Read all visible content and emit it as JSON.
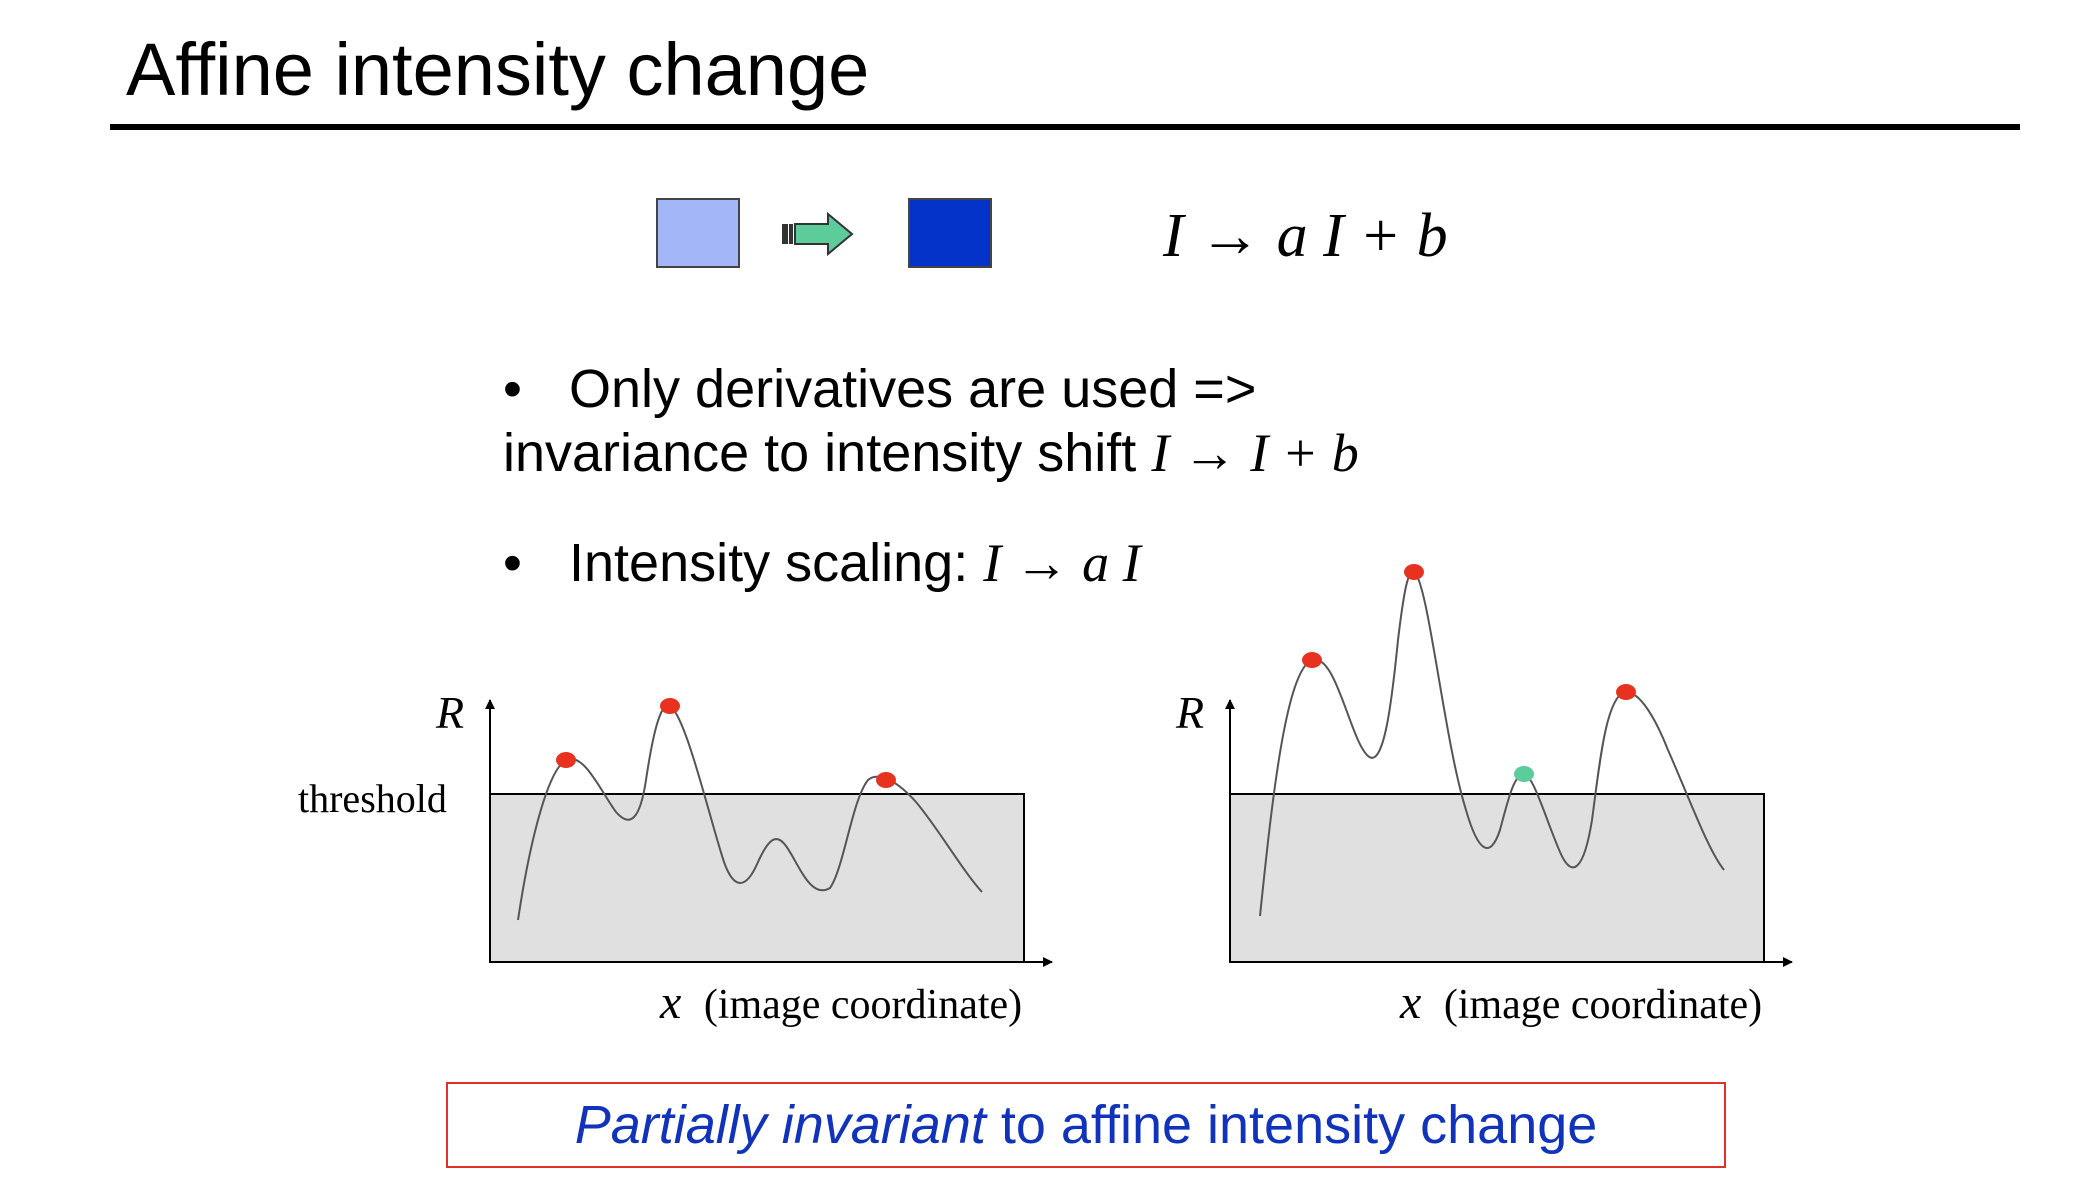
{
  "slide": {
    "title": "Affine intensity change"
  },
  "illustration": {
    "light_color": "#a3b6f7",
    "dark_color": "#0333c8",
    "arrow_color": "#5ccc9a",
    "formula": "I → a I + b"
  },
  "bullets": [
    {
      "line1": "Only derivatives are used =>",
      "line2_text": "invariance to intensity shift ",
      "line2_math": "I → I + b"
    },
    {
      "text": "Intensity scaling: ",
      "math": "I → a I"
    }
  ],
  "plots": [
    {
      "ylabel": "R",
      "threshold_label": "threshold",
      "xlabel_var": "x",
      "xlabel_text": "(image coordinate)"
    },
    {
      "ylabel": "R",
      "xlabel_var": "x",
      "xlabel_text": "(image coordinate)"
    }
  ],
  "colors": {
    "peak_above": "#e8321f",
    "peak_below": "#5ccc9a",
    "threshold_fill": "#e0e0e0"
  },
  "summary": {
    "emphasis": "Partially invariant",
    "rest": " to affine intensity change"
  }
}
